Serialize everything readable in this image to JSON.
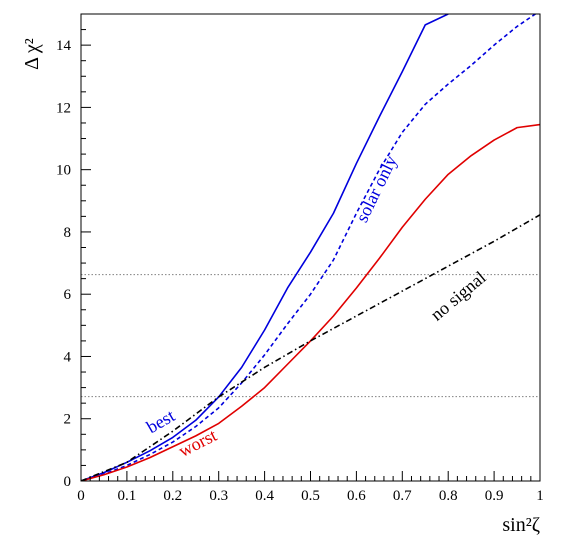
{
  "chart_data": {
    "type": "line",
    "xlabel": "sin²ζ",
    "ylabel": "Δ χ²",
    "xlim": [
      0,
      1
    ],
    "ylim": [
      0,
      15
    ],
    "grid": false,
    "x_ticks": [
      "0",
      "0.1",
      "0.2",
      "0.3",
      "0.4",
      "0.5",
      "0.6",
      "0.7",
      "0.8",
      "0.9",
      "1"
    ],
    "y_ticks": [
      "0",
      "2",
      "4",
      "6",
      "8",
      "10",
      "12",
      "14"
    ],
    "reference_lines": [
      {
        "y": 6.63,
        "style": "dotted",
        "color": "#808080"
      },
      {
        "y": 2.71,
        "style": "dotted",
        "color": "#808080"
      }
    ],
    "series": [
      {
        "name": "best",
        "color": "#0000dd",
        "style": "solid",
        "x": [
          0,
          0.05,
          0.1,
          0.15,
          0.2,
          0.25,
          0.3,
          0.35,
          0.4,
          0.45,
          0.5,
          0.55,
          0.6,
          0.65,
          0.7,
          0.75,
          0.8
        ],
        "y": [
          0,
          0.27,
          0.6,
          0.97,
          1.4,
          1.95,
          2.7,
          3.65,
          4.85,
          6.2,
          7.35,
          8.6,
          10.2,
          11.7,
          13.15,
          14.65,
          15
        ]
      },
      {
        "name": "solar only",
        "color": "#0000dd",
        "style": "dashed",
        "x": [
          0,
          0.05,
          0.1,
          0.15,
          0.2,
          0.25,
          0.3,
          0.35,
          0.4,
          0.45,
          0.5,
          0.55,
          0.6,
          0.65,
          0.7,
          0.75,
          0.8,
          0.85,
          0.9,
          0.95,
          0.99
        ],
        "y": [
          0,
          0.22,
          0.5,
          0.85,
          1.25,
          1.75,
          2.35,
          3.15,
          4.05,
          5.05,
          6.0,
          7.1,
          8.6,
          10.0,
          11.2,
          12.1,
          12.75,
          13.35,
          14.0,
          14.6,
          15
        ]
      },
      {
        "name": "worst",
        "color": "#e00000",
        "style": "solid",
        "x": [
          0,
          0.05,
          0.1,
          0.15,
          0.2,
          0.25,
          0.3,
          0.35,
          0.4,
          0.45,
          0.5,
          0.55,
          0.6,
          0.65,
          0.7,
          0.75,
          0.8,
          0.85,
          0.9,
          0.95,
          1.0
        ],
        "y": [
          0,
          0.2,
          0.45,
          0.75,
          1.1,
          1.45,
          1.85,
          2.4,
          3.0,
          3.75,
          4.5,
          5.3,
          6.2,
          7.15,
          8.15,
          9.05,
          9.85,
          10.45,
          10.95,
          11.35,
          11.45
        ]
      },
      {
        "name": "no signal",
        "color": "#000000",
        "style": "dashdot",
        "x": [
          0,
          0.1,
          0.2,
          0.3,
          0.4,
          0.5,
          0.6,
          0.7,
          0.8,
          0.9,
          1.0
        ],
        "y": [
          0,
          0.6,
          1.6,
          2.7,
          3.65,
          4.5,
          5.3,
          6.1,
          6.9,
          7.7,
          8.55
        ]
      }
    ],
    "annotations": [
      {
        "text": "best",
        "color": "#0000dd",
        "x": 0.18,
        "y": 1.75,
        "angle": -30
      },
      {
        "text": "worst",
        "color": "#e00000",
        "x": 0.26,
        "y": 1.05,
        "angle": -27
      },
      {
        "text": "solar only",
        "color": "#0000dd",
        "x": 0.655,
        "y": 9.3,
        "angle": -64
      },
      {
        "text": "no signal",
        "color": "#000000",
        "x": 0.83,
        "y": 5.8,
        "angle": -40
      }
    ]
  }
}
